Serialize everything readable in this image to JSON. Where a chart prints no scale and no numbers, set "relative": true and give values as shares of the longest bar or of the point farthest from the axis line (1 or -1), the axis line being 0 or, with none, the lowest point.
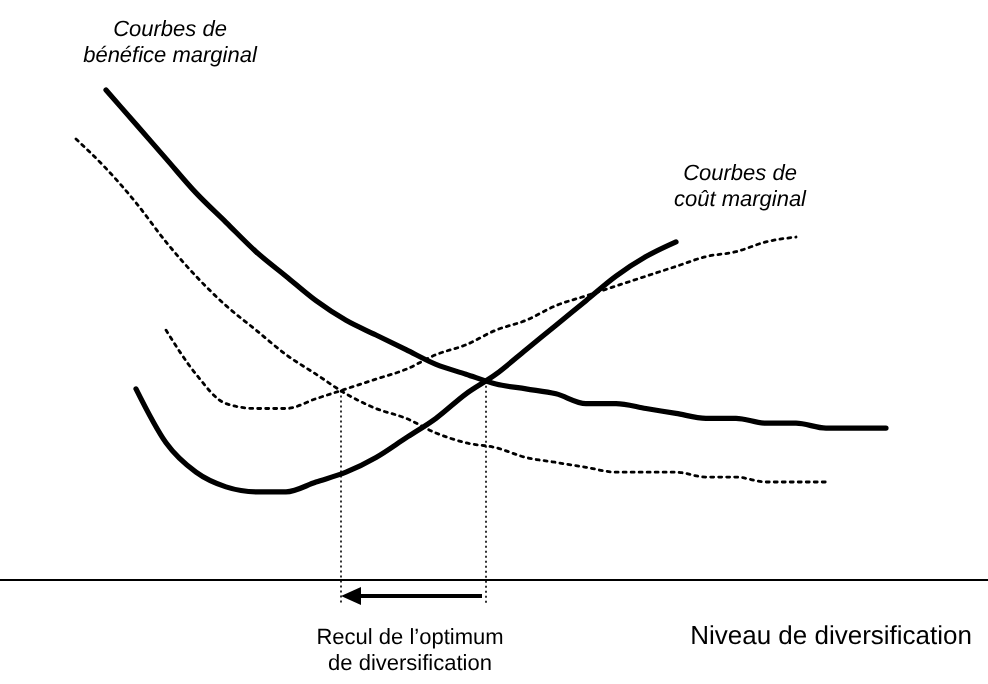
{
  "chart_data": {
    "type": "line",
    "relative": true,
    "xlabel": "Niveau de diversification",
    "categories": [
      null,
      null,
      null,
      null,
      null,
      null,
      null,
      null,
      null,
      null,
      null,
      null,
      null,
      null,
      null,
      null,
      null,
      null,
      null,
      null,
      null,
      null,
      null,
      null,
      null,
      null,
      null,
      null
    ],
    "series": [
      {
        "color": "#000000",
        "line_style": "solid",
        "values": [
          null,
          1.0,
          0.93,
          0.86,
          0.79,
          0.73,
          0.67,
          0.62,
          0.57,
          0.53,
          0.5,
          0.47,
          0.44,
          0.42,
          0.4,
          0.39,
          0.38,
          0.36,
          0.36,
          0.35,
          0.34,
          0.33,
          0.33,
          0.32,
          0.32,
          0.31,
          0.31,
          0.31
        ]
      },
      {
        "color": "#000000",
        "line_style": "dotted",
        "values": [
          0.9,
          0.84,
          0.77,
          0.69,
          0.62,
          0.56,
          0.51,
          0.46,
          0.42,
          0.38,
          0.35,
          0.33,
          0.3,
          0.28,
          0.27,
          0.25,
          0.24,
          0.23,
          0.22,
          0.22,
          0.22,
          0.21,
          0.21,
          0.2,
          0.2,
          0.2,
          null,
          null
        ]
      },
      {
        "color": "#000000",
        "line_style": "solid",
        "values": [
          null,
          null,
          0.39,
          0.28,
          0.22,
          0.19,
          0.18,
          0.18,
          0.2,
          0.22,
          0.25,
          0.29,
          0.33,
          0.38,
          0.42,
          0.47,
          0.52,
          0.57,
          0.62,
          0.66,
          0.69,
          null,
          null,
          null,
          null,
          null,
          null,
          null
        ]
      },
      {
        "color": "#000000",
        "line_style": "dotted",
        "values": [
          null,
          null,
          null,
          0.51,
          0.42,
          0.36,
          0.35,
          0.35,
          0.37,
          0.39,
          0.41,
          0.43,
          0.46,
          0.48,
          0.51,
          0.53,
          0.56,
          0.58,
          0.6,
          0.62,
          0.64,
          0.66,
          0.67,
          0.69,
          0.7,
          null,
          null,
          null
        ]
      }
    ],
    "annotations": [
      "Courbes de\nbénéfice marginal",
      "Courbes de\ncoût marginal",
      "Recul de l’optimum\nde diversification"
    ]
  }
}
